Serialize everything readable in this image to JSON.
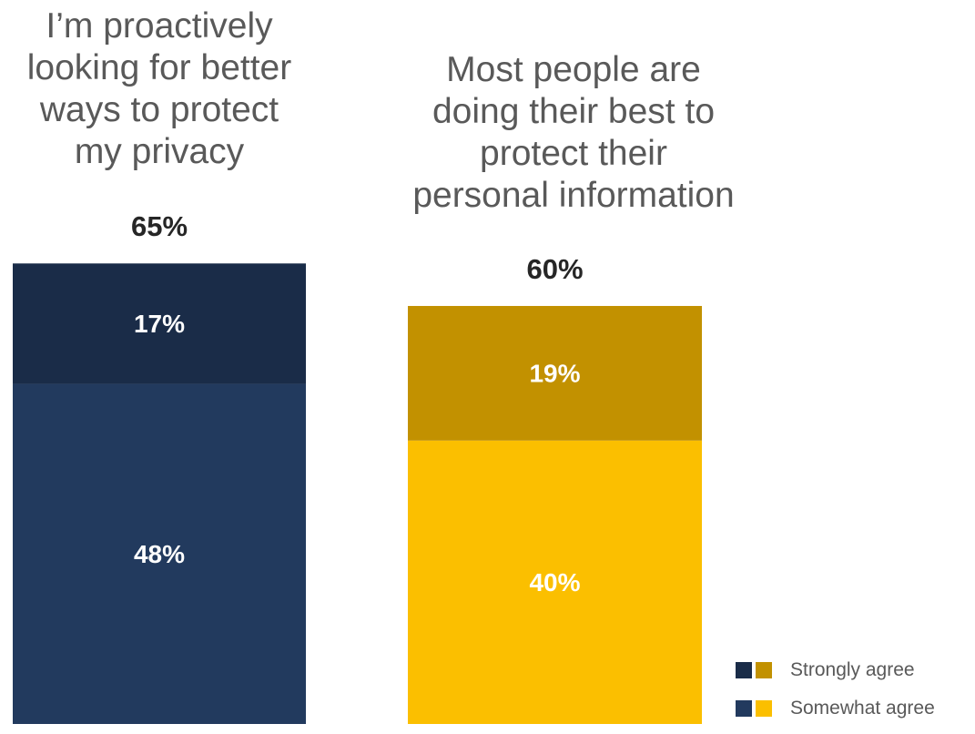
{
  "chart_data": {
    "type": "bar",
    "stacked": true,
    "categories": [
      "I’m proactively looking for better ways to protect my privacy",
      "Most people are doing their best to protect their personal information"
    ],
    "category_title_lines": [
      [
        "I’m proactively",
        "looking for better",
        "ways to protect",
        "my privacy"
      ],
      [
        "Most people are",
        "doing their best to",
        "protect their",
        "personal information"
      ]
    ],
    "totals": [
      "65%",
      "60%"
    ],
    "series": [
      {
        "name": "Somewhat agree",
        "values": [
          48,
          40
        ],
        "labels": [
          "48%",
          "40%"
        ],
        "colors": [
          "#223a5e",
          "#fbbf00"
        ]
      },
      {
        "name": "Strongly agree",
        "values": [
          17,
          19
        ],
        "labels": [
          "17%",
          "19%"
        ],
        "colors": [
          "#1a2c48",
          "#c29100"
        ]
      }
    ],
    "ylim": [
      0,
      65
    ],
    "grid": false,
    "legend_position": "bottom-right"
  }
}
